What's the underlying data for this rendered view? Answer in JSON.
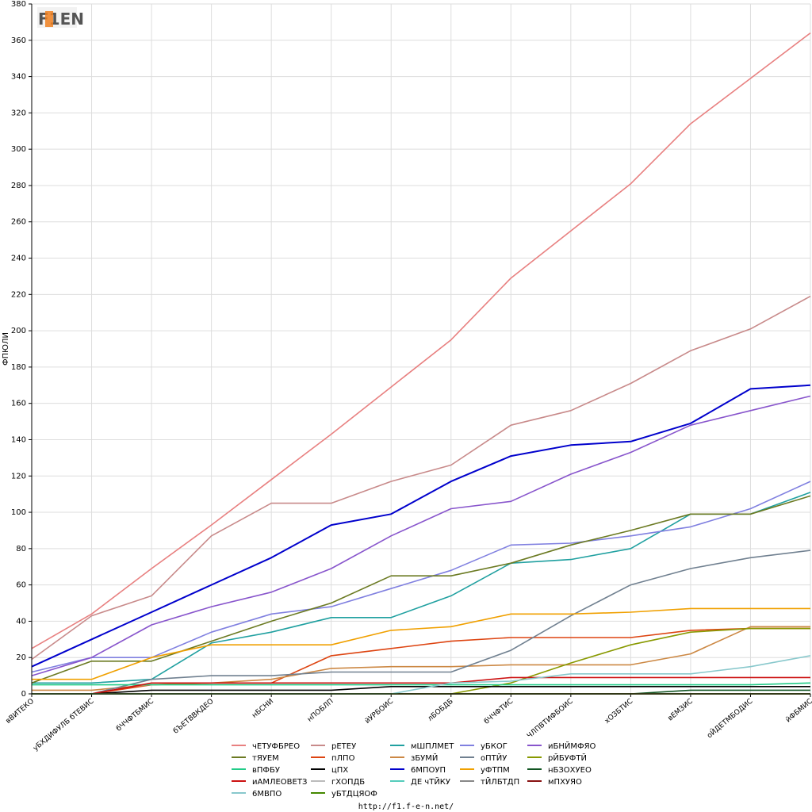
{
  "logo": {
    "text": "F1EN"
  },
  "footer": {
    "url": "http://f1.f-e-n.net/"
  },
  "chart_data": {
    "type": "line",
    "ylabel": "ФПЮЛИ",
    "ylim": [
      0,
      380
    ],
    "ytick_step": 20,
    "grid": true,
    "legend_placement": "bottom",
    "categories": [
      "вВИТЕКО",
      "уБХДИФУЛБ бТЕВИС",
      "бЧЧФТБМИС",
      "бЪЕТВВКДЕО",
      "нБСНИ",
      "нПОБЛП",
      "йУРБОИС",
      "лБОБДБ",
      "бЧЧФТИС",
      "ЧЛПВТИФБОИС",
      "хОЗБТИС",
      "вЕМЗИС",
      "оЙДЕТМБОДИС",
      "йФБМИС"
    ],
    "series": [
      {
        "name": "чЕТУФБРЕО",
        "color": "#e88080",
        "values": [
          25,
          44,
          69,
          93,
          118,
          143,
          169,
          195,
          229,
          255,
          281,
          314,
          339,
          364
        ]
      },
      {
        "name": "рЕТЕУ",
        "color": "#c88a8a",
        "values": [
          19,
          43,
          54,
          87,
          105,
          105,
          117,
          126,
          148,
          156,
          171,
          189,
          201,
          219
        ]
      },
      {
        "name": "мШПЛМЕТ",
        "color": "#20a0a0",
        "values": [
          6,
          6,
          8,
          28,
          34,
          42,
          42,
          54,
          72,
          74,
          80,
          99,
          99,
          111
        ]
      },
      {
        "name": "уБКОГ",
        "color": "#8080e0",
        "values": [
          12,
          20,
          20,
          34,
          44,
          48,
          58,
          68,
          82,
          83,
          87,
          92,
          102,
          117
        ]
      },
      {
        "name": "иБНЙМФЯО",
        "color": "#8855cc",
        "values": [
          10,
          20,
          38,
          48,
          56,
          69,
          87,
          102,
          106,
          121,
          133,
          148,
          156,
          164
        ]
      },
      {
        "name": "тЯУЕМ",
        "color": "#6b7a22",
        "values": [
          6,
          18,
          18,
          29,
          40,
          50,
          65,
          65,
          72,
          82,
          90,
          99,
          99,
          109
        ]
      },
      {
        "name": "пЛПО",
        "color": "#dd4411",
        "values": [
          0,
          0,
          5,
          6,
          6,
          21,
          25,
          29,
          31,
          31,
          31,
          35,
          36,
          36
        ]
      },
      {
        "name": "зБУМЙ",
        "color": "#cc8844",
        "values": [
          2,
          2,
          5,
          6,
          8,
          14,
          15,
          15,
          16,
          16,
          16,
          22,
          37,
          37
        ]
      },
      {
        "name": "оПТЙУ",
        "color": "#708090",
        "values": [
          0,
          0,
          8,
          10,
          10,
          12,
          12,
          12,
          24,
          43,
          60,
          69,
          75,
          79
        ]
      },
      {
        "name": "рЙБУФТЙ",
        "color": "#889900",
        "values": [
          0,
          0,
          0,
          0,
          0,
          0,
          0,
          0,
          6,
          17,
          27,
          34,
          36,
          36
        ]
      },
      {
        "name": "вПФБУ",
        "color": "#22cc88",
        "values": [
          5,
          5,
          5,
          5,
          5,
          5,
          5,
          5,
          5,
          5,
          5,
          5,
          5,
          6
        ]
      },
      {
        "name": "цПХ",
        "color": "#000000",
        "values": [
          0,
          0,
          2,
          2,
          2,
          2,
          4,
          4,
          4,
          4,
          4,
          4,
          4,
          4
        ]
      },
      {
        "name": "6МПОУП",
        "color": "#0000cc",
        "values": [
          15,
          30,
          45,
          60,
          75,
          93,
          99,
          117,
          131,
          137,
          139,
          149,
          168,
          170
        ]
      },
      {
        "name": "уФТПМ",
        "color": "#f0a000",
        "values": [
          8,
          8,
          20,
          27,
          27,
          27,
          35,
          37,
          44,
          44,
          45,
          47,
          47,
          47
        ]
      },
      {
        "name": "нБЗОХУЕО",
        "color": "#115522",
        "values": [
          0,
          0,
          0,
          0,
          0,
          0,
          0,
          0,
          0,
          0,
          0,
          2,
          2,
          2
        ]
      },
      {
        "name": "иАМЛЕОВЕТЗ",
        "color": "#cc1111",
        "values": [
          0,
          0,
          6,
          6,
          6,
          6,
          6,
          6,
          9,
          9,
          9,
          9,
          9,
          9
        ]
      },
      {
        "name": "гХОПДБ",
        "color": "#bbbbbb",
        "values": [
          0,
          0,
          0,
          0,
          0,
          0,
          0,
          0,
          0,
          0,
          0,
          0,
          0,
          0
        ]
      },
      {
        "name": "ДЕ чТЙКУ",
        "color": "#55ccbb",
        "values": [
          0,
          0,
          0,
          0,
          0,
          0,
          0,
          0,
          0,
          0,
          0,
          0,
          0,
          0
        ]
      },
      {
        "name": "тЙЛБТДП",
        "color": "#888888",
        "values": [
          0,
          0,
          0,
          0,
          0,
          0,
          0,
          0,
          0,
          0,
          0,
          0,
          0,
          0
        ]
      },
      {
        "name": "мПХУЯО",
        "color": "#881111",
        "values": [
          0,
          0,
          0,
          0,
          0,
          0,
          0,
          0,
          0,
          0,
          0,
          0,
          0,
          0
        ]
      },
      {
        "name": "6МВПО",
        "color": "#88c8cc",
        "values": [
          0,
          0,
          0,
          0,
          0,
          0,
          0,
          6,
          7,
          11,
          11,
          11,
          15,
          21
        ]
      },
      {
        "name": "уБТДЦЯОФ",
        "color": "#448800",
        "values": [
          0,
          0,
          0,
          0,
          0,
          0,
          0,
          0,
          0,
          0,
          0,
          0,
          0,
          0
        ]
      }
    ]
  }
}
